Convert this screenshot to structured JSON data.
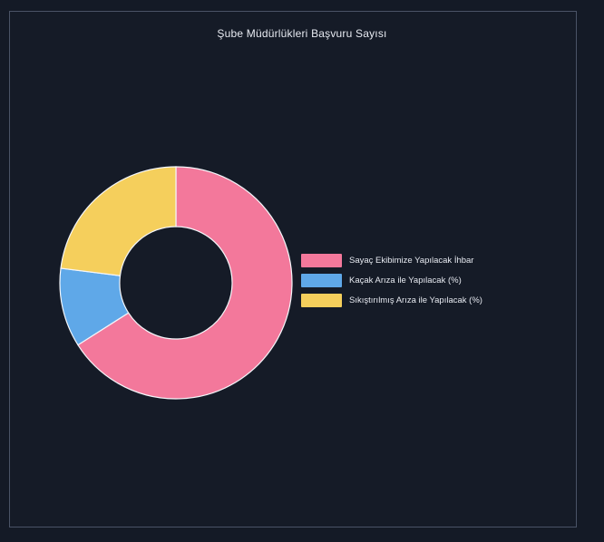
{
  "chart_data": {
    "type": "pie",
    "title": "Şube Müdürlükleri Başvuru Sayısı",
    "categories": [
      "Sayaç Ekibimize Yapılacak İhbar",
      "Kaçak Arıza ile Yapılacak (%)",
      "Sıkıştırılmış Arıza ile Yapılacak (%)"
    ],
    "values": [
      66,
      11,
      23
    ],
    "colors": [
      "#f3789b",
      "#5fa8e8",
      "#f5cf5c"
    ],
    "donut": true,
    "legend": "right"
  }
}
